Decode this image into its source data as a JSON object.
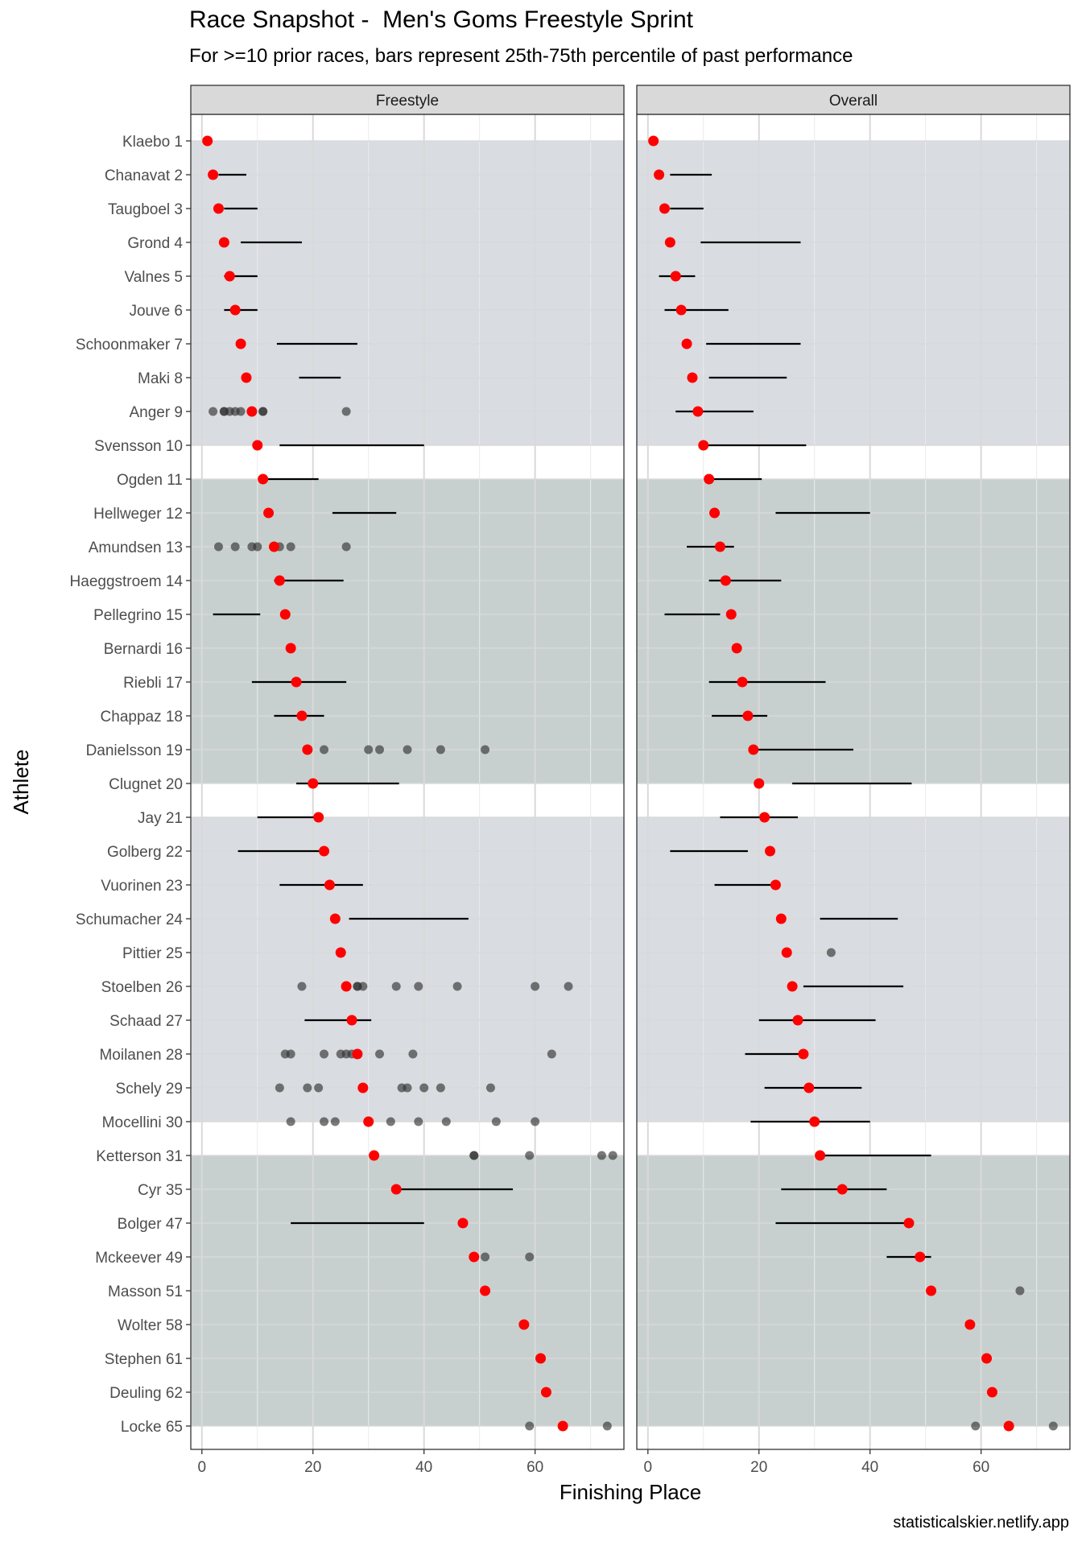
{
  "title": "Race Snapshot -  Men's Goms Freestyle Sprint",
  "subtitle": "For >=10 prior races, bars represent 25th-75th percentile of past performance",
  "caption": "statisticalskier.netlify.app",
  "colors": {
    "band_light": "#d9dce1",
    "band_dark": "#c8d0cf",
    "current": "#ff0000",
    "past": "#333333",
    "grid": "#d9d9d9",
    "strip": "#d9d9d9"
  },
  "chart_data": {
    "type": "dot-range",
    "xlabel": "Finishing Place",
    "ylabel": "Athlete",
    "xlim": [
      -2,
      76
    ],
    "xticks": [
      0,
      20,
      40,
      60
    ],
    "grid": true,
    "panels": [
      "Freestyle",
      "Overall"
    ],
    "bands": [
      {
        "from": 1,
        "to": 10,
        "shade": "light"
      },
      {
        "from": 11,
        "to": 20,
        "shade": "dark"
      },
      {
        "from": 21,
        "to": 30,
        "shade": "light"
      },
      {
        "from": 31,
        "to": 39,
        "shade": "dark"
      }
    ],
    "athletes": [
      {
        "label": "Klaebo 1",
        "place": 1,
        "freestyle": {
          "range": null,
          "points": []
        },
        "overall": {
          "range": null,
          "points": []
        }
      },
      {
        "label": "Chanavat 2",
        "place": 2,
        "freestyle": {
          "range": [
            3,
            8
          ],
          "points": []
        },
        "overall": {
          "range": [
            4,
            11.5
          ],
          "points": []
        }
      },
      {
        "label": "Taugboel 3",
        "place": 3,
        "freestyle": {
          "range": [
            4,
            10
          ],
          "points": []
        },
        "overall": {
          "range": [
            4,
            10
          ],
          "points": []
        }
      },
      {
        "label": "Grond 4",
        "place": 4,
        "freestyle": {
          "range": [
            7,
            18
          ],
          "points": []
        },
        "overall": {
          "range": [
            9.5,
            27.5
          ],
          "points": []
        }
      },
      {
        "label": "Valnes 5",
        "place": 5,
        "freestyle": {
          "range": [
            4,
            10
          ],
          "points": []
        },
        "overall": {
          "range": [
            2,
            8.5
          ],
          "points": []
        }
      },
      {
        "label": "Jouve 6",
        "place": 6,
        "freestyle": {
          "range": [
            4,
            10
          ],
          "points": []
        },
        "overall": {
          "range": [
            3,
            14.5
          ],
          "points": []
        }
      },
      {
        "label": "Schoonmaker 7",
        "place": 7,
        "freestyle": {
          "range": [
            13.5,
            28
          ],
          "points": []
        },
        "overall": {
          "range": [
            10.5,
            27.5
          ],
          "points": []
        }
      },
      {
        "label": "Maki 8",
        "place": 8,
        "freestyle": {
          "range": [
            17.5,
            25
          ],
          "points": []
        },
        "overall": {
          "range": [
            11,
            25
          ],
          "points": []
        }
      },
      {
        "label": "Anger 9",
        "place": 9,
        "freestyle": {
          "range": null,
          "points": [
            2,
            4,
            4,
            5,
            6,
            7,
            11,
            11,
            26
          ]
        },
        "overall": {
          "range": [
            5,
            19
          ],
          "points": []
        }
      },
      {
        "label": "Svensson 10",
        "place": 10,
        "freestyle": {
          "range": [
            14,
            40
          ],
          "points": []
        },
        "overall": {
          "range": [
            10,
            28.5
          ],
          "points": []
        }
      },
      {
        "label": "Ogden 11",
        "place": 11,
        "freestyle": {
          "range": [
            11,
            21
          ],
          "points": []
        },
        "overall": {
          "range": [
            11,
            20.5
          ],
          "points": []
        }
      },
      {
        "label": "Hellweger 12",
        "place": 12,
        "freestyle": {
          "range": [
            23.5,
            35
          ],
          "points": []
        },
        "overall": {
          "range": [
            23,
            40
          ],
          "points": []
        }
      },
      {
        "label": "Amundsen 13",
        "place": 13,
        "freestyle": {
          "range": null,
          "points": [
            3,
            6,
            9,
            10,
            14,
            16,
            26
          ]
        },
        "overall": {
          "range": [
            7,
            15.5
          ],
          "points": []
        }
      },
      {
        "label": "Haeggstroem 14",
        "place": 14,
        "freestyle": {
          "range": [
            13,
            25.5
          ],
          "points": []
        },
        "overall": {
          "range": [
            11,
            24
          ],
          "points": []
        }
      },
      {
        "label": "Pellegrino 15",
        "place": 15,
        "freestyle": {
          "range": [
            2,
            10.5
          ],
          "points": []
        },
        "overall": {
          "range": [
            3,
            13
          ],
          "points": []
        }
      },
      {
        "label": "Bernardi 16",
        "place": 16,
        "freestyle": {
          "range": null,
          "points": []
        },
        "overall": {
          "range": null,
          "points": []
        }
      },
      {
        "label": "Riebli 17",
        "place": 17,
        "freestyle": {
          "range": [
            9,
            26
          ],
          "points": []
        },
        "overall": {
          "range": [
            11,
            32
          ],
          "points": []
        }
      },
      {
        "label": "Chappaz 18",
        "place": 18,
        "freestyle": {
          "range": [
            13,
            22
          ],
          "points": []
        },
        "overall": {
          "range": [
            11.5,
            21.5
          ],
          "points": []
        }
      },
      {
        "label": "Danielsson 19",
        "place": 19,
        "freestyle": {
          "range": null,
          "points": [
            22,
            30,
            32,
            37,
            43,
            51
          ]
        },
        "overall": {
          "range": [
            19,
            37
          ],
          "points": []
        }
      },
      {
        "label": "Clugnet 20",
        "place": 20,
        "freestyle": {
          "range": [
            17,
            35.5
          ],
          "points": []
        },
        "overall": {
          "range": [
            26,
            47.5
          ],
          "points": []
        }
      },
      {
        "label": "Jay 21",
        "place": 21,
        "freestyle": {
          "range": [
            10,
            21.5
          ],
          "points": []
        },
        "overall": {
          "range": [
            13,
            27
          ],
          "points": []
        }
      },
      {
        "label": "Golberg 22",
        "place": 22,
        "freestyle": {
          "range": [
            6.5,
            22
          ],
          "points": []
        },
        "overall": {
          "range": [
            4,
            18
          ],
          "points": []
        }
      },
      {
        "label": "Vuorinen 23",
        "place": 23,
        "freestyle": {
          "range": [
            14,
            29
          ],
          "points": []
        },
        "overall": {
          "range": [
            12,
            23
          ],
          "points": []
        }
      },
      {
        "label": "Schumacher 24",
        "place": 24,
        "freestyle": {
          "range": [
            26.5,
            48
          ],
          "points": []
        },
        "overall": {
          "range": [
            31,
            45
          ],
          "points": []
        }
      },
      {
        "label": "Pittier 25",
        "place": 25,
        "freestyle": {
          "range": null,
          "points": []
        },
        "overall": {
          "range": null,
          "points": [
            33
          ]
        }
      },
      {
        "label": "Stoelben 26",
        "place": 26,
        "freestyle": {
          "range": null,
          "points": [
            18,
            28,
            28,
            29,
            35,
            39,
            46,
            60,
            66
          ]
        },
        "overall": {
          "range": [
            28,
            46
          ],
          "points": []
        }
      },
      {
        "label": "Schaad 27",
        "place": 27,
        "freestyle": {
          "range": [
            18.5,
            30.5
          ],
          "points": []
        },
        "overall": {
          "range": [
            20,
            41
          ],
          "points": []
        }
      },
      {
        "label": "Moilanen 28",
        "place": 28,
        "freestyle": {
          "range": null,
          "points": [
            15,
            16,
            22,
            25,
            26,
            27,
            32,
            38,
            63
          ]
        },
        "overall": {
          "range": [
            17.5,
            28
          ],
          "points": []
        }
      },
      {
        "label": "Schely 29",
        "place": 29,
        "freestyle": {
          "range": null,
          "points": [
            14,
            19,
            21,
            36,
            37,
            40,
            43,
            52
          ]
        },
        "overall": {
          "range": [
            21,
            38.5
          ],
          "points": []
        }
      },
      {
        "label": "Mocellini 30",
        "place": 30,
        "freestyle": {
          "range": null,
          "points": [
            16,
            22,
            24,
            34,
            39,
            44,
            53,
            60
          ]
        },
        "overall": {
          "range": [
            18.5,
            40
          ],
          "points": []
        }
      },
      {
        "label": "Ketterson 31",
        "place": 31,
        "freestyle": {
          "range": null,
          "points": [
            49,
            49,
            59,
            72,
            74
          ]
        },
        "overall": {
          "range": [
            31,
            51
          ],
          "points": []
        }
      },
      {
        "label": "Cyr 35",
        "place": 35,
        "freestyle": {
          "range": [
            35,
            56
          ],
          "points": []
        },
        "overall": {
          "range": [
            24,
            43
          ],
          "points": []
        }
      },
      {
        "label": "Bolger 47",
        "place": 47,
        "freestyle": {
          "range": [
            16,
            40
          ],
          "points": []
        },
        "overall": {
          "range": [
            23,
            47
          ],
          "points": []
        }
      },
      {
        "label": "Mckeever 49",
        "place": 49,
        "freestyle": {
          "range": null,
          "points": [
            51,
            59
          ]
        },
        "overall": {
          "range": [
            43,
            51
          ],
          "points": []
        }
      },
      {
        "label": "Masson 51",
        "place": 51,
        "freestyle": {
          "range": null,
          "points": []
        },
        "overall": {
          "range": null,
          "points": [
            67
          ]
        }
      },
      {
        "label": "Wolter 58",
        "place": 58,
        "freestyle": {
          "range": null,
          "points": []
        },
        "overall": {
          "range": null,
          "points": []
        }
      },
      {
        "label": "Stephen 61",
        "place": 61,
        "freestyle": {
          "range": null,
          "points": []
        },
        "overall": {
          "range": null,
          "points": []
        }
      },
      {
        "label": "Deuling 62",
        "place": 62,
        "freestyle": {
          "range": null,
          "points": []
        },
        "overall": {
          "range": null,
          "points": []
        }
      },
      {
        "label": "Locke 65",
        "place": 65,
        "freestyle": {
          "range": null,
          "points": [
            59,
            73
          ]
        },
        "overall": {
          "range": null,
          "points": [
            59,
            73
          ]
        }
      }
    ]
  }
}
